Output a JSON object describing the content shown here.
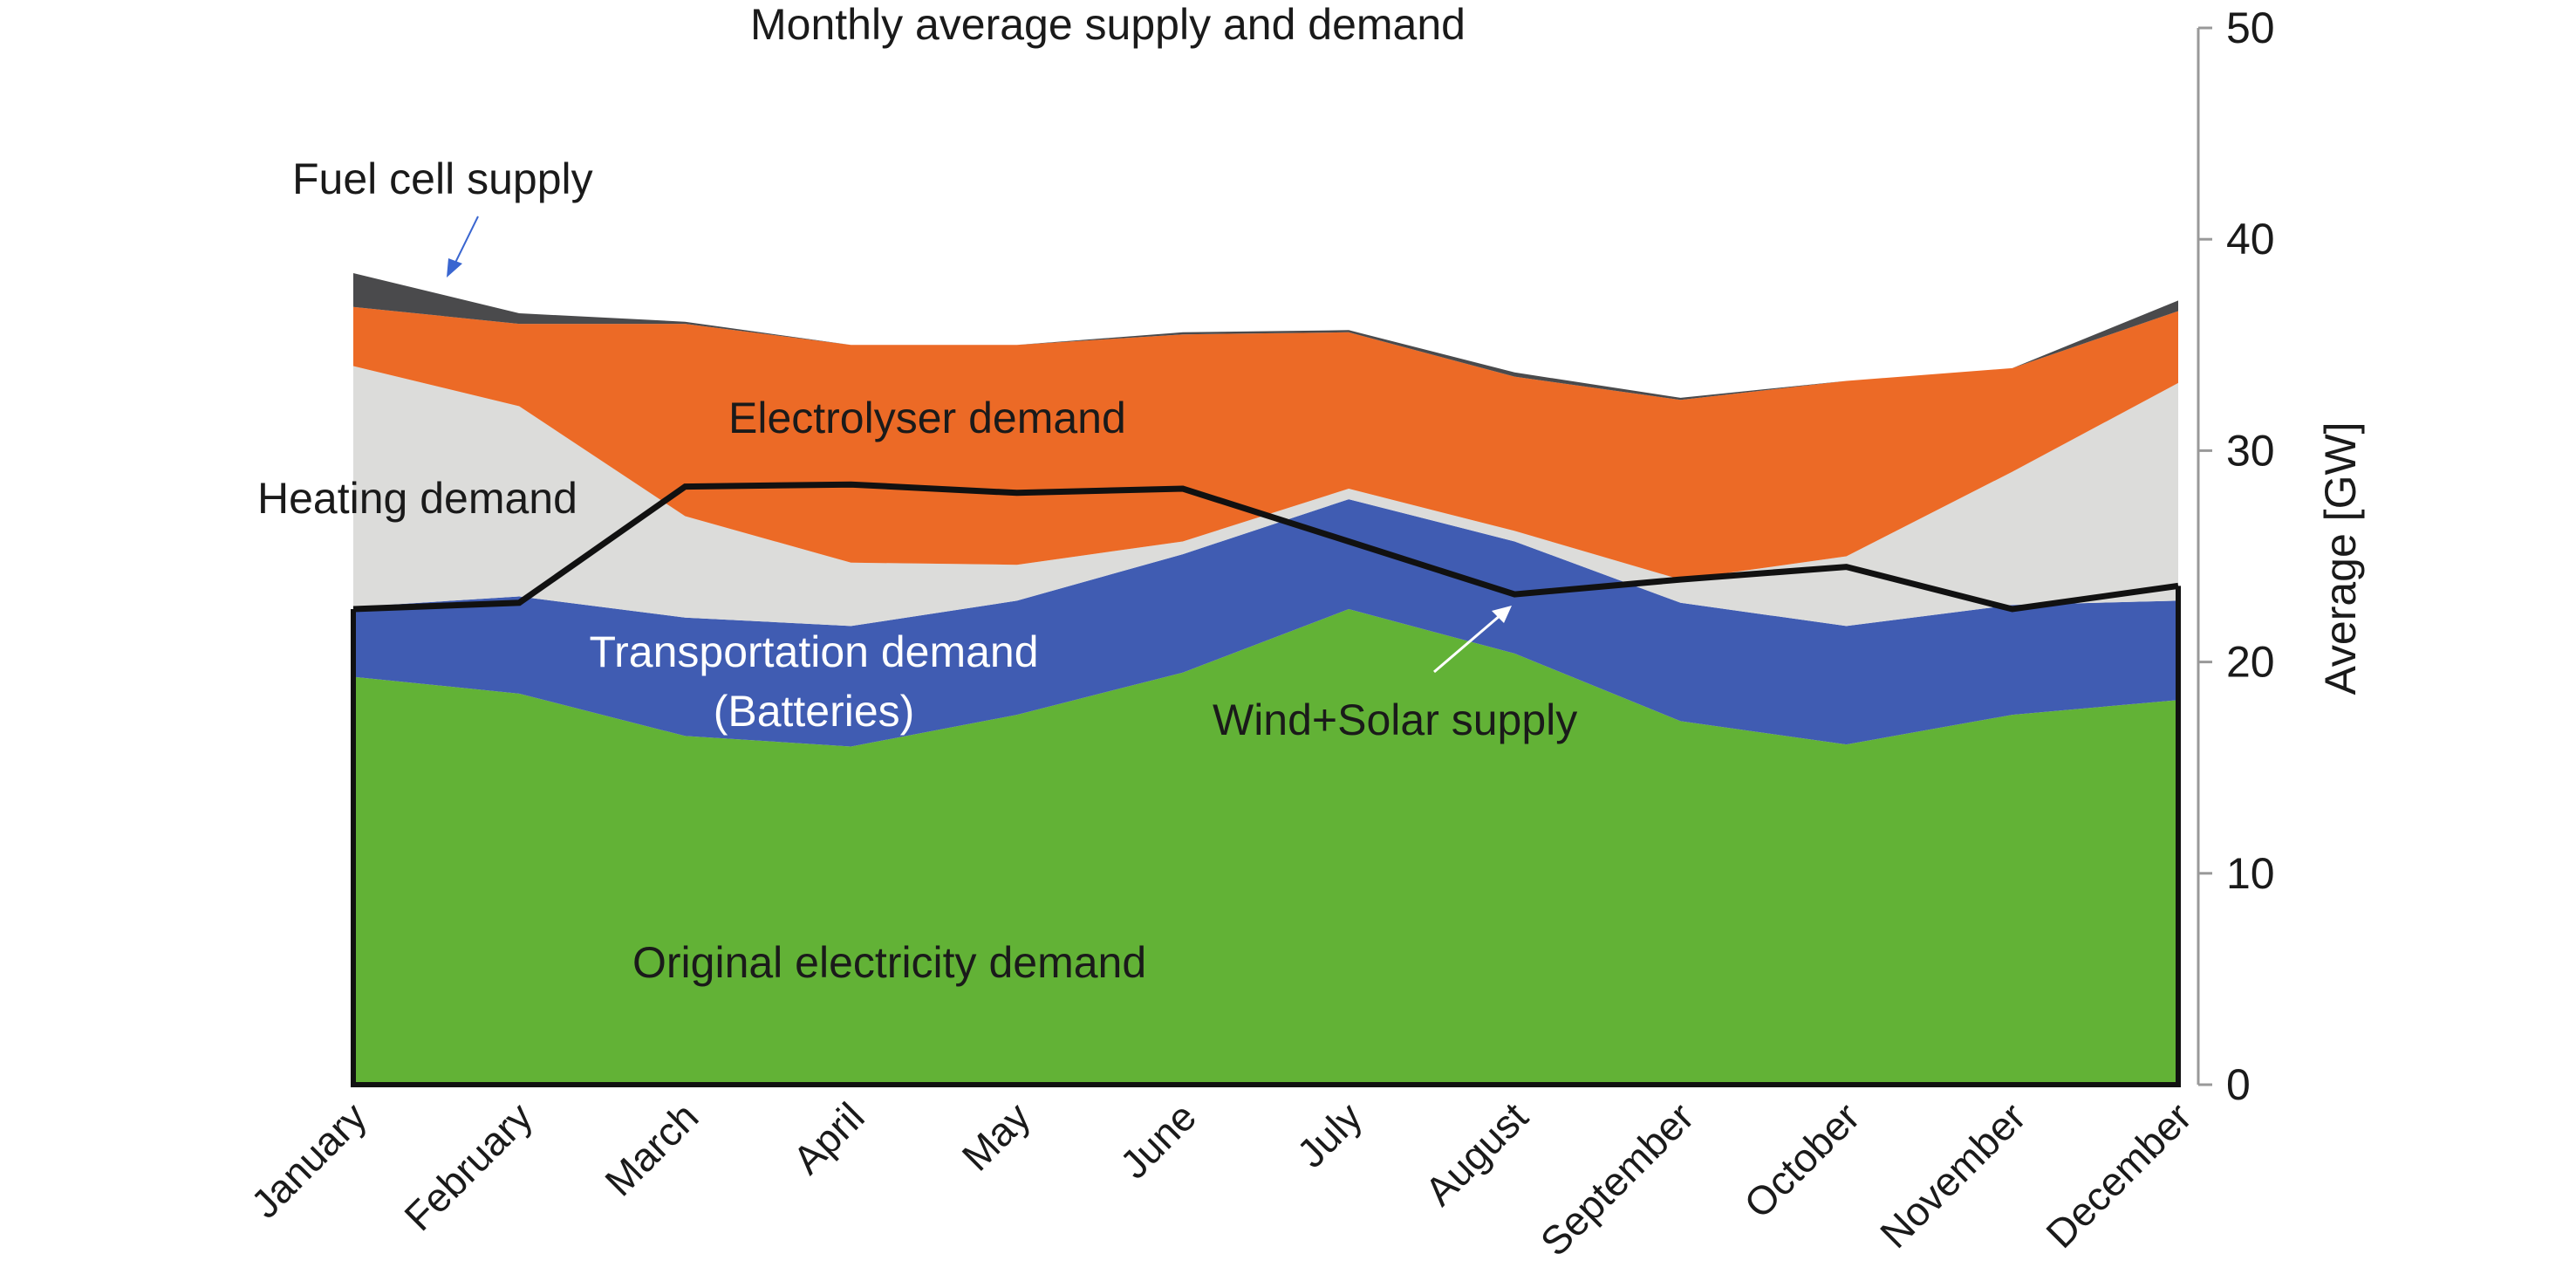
{
  "chart_data": {
    "type": "area",
    "stacked": true,
    "title": "Monthly average supply and demand",
    "xlabel": "",
    "ylabel": "Average [GW]",
    "y_axis_side": "right",
    "ylim": [
      0,
      50
    ],
    "yticks": [
      0,
      10,
      20,
      30,
      40,
      50
    ],
    "grid": false,
    "categories": [
      "January",
      "February",
      "March",
      "April",
      "May",
      "June",
      "July",
      "August",
      "September",
      "October",
      "November",
      "December"
    ],
    "series": [
      {
        "name": "Original electricity demand",
        "color": "#62b236",
        "values": [
          19.3,
          18.5,
          16.5,
          16.0,
          17.5,
          19.5,
          22.5,
          20.4,
          17.2,
          16.1,
          17.5,
          18.2
        ]
      },
      {
        "name": "Transportation demand (Batteries)",
        "color": "#405cb2",
        "values": [
          3.3,
          4.6,
          5.6,
          5.7,
          5.4,
          5.6,
          5.2,
          5.3,
          5.6,
          5.6,
          5.2,
          4.7
        ]
      },
      {
        "name": "Heating demand",
        "color": "#dcdcda",
        "values": [
          11.4,
          9.0,
          4.8,
          3.0,
          1.7,
          0.6,
          0.5,
          0.5,
          1.1,
          3.3,
          6.3,
          10.3
        ]
      },
      {
        "name": "Electrolyser demand",
        "color": "#ec6a26",
        "values": [
          2.8,
          3.9,
          9.1,
          10.3,
          10.4,
          9.8,
          7.4,
          7.3,
          8.5,
          8.3,
          4.9,
          3.4
        ]
      },
      {
        "name": "Fuel cell supply",
        "color": "#4a4a4c",
        "values": [
          1.6,
          0.5,
          0.1,
          0.0,
          0.0,
          0.1,
          0.1,
          0.2,
          0.1,
          0.0,
          0.0,
          0.5
        ]
      }
    ],
    "lines": [
      {
        "name": "Wind+Solar supply",
        "color": "#111111",
        "values": [
          22.5,
          22.8,
          28.3,
          28.4,
          28.0,
          28.2,
          25.7,
          23.2,
          23.9,
          24.5,
          22.5,
          23.6
        ]
      }
    ],
    "annotations": [
      {
        "text": "Fuel cell supply",
        "arrow_color": "#3a66d0",
        "points_to": "Fuel cell supply band, January–February"
      },
      {
        "text": "Electrolyser demand"
      },
      {
        "text": "Heating demand"
      },
      {
        "text": "Transportation demand",
        "text_color": "#ffffff"
      },
      {
        "text": "(Batteries)",
        "text_color": "#ffffff"
      },
      {
        "text": "Wind+Solar supply",
        "arrow_color": "#ffffff",
        "points_to": "Wind+Solar supply line, August"
      },
      {
        "text": "Original electricity demand"
      }
    ]
  }
}
